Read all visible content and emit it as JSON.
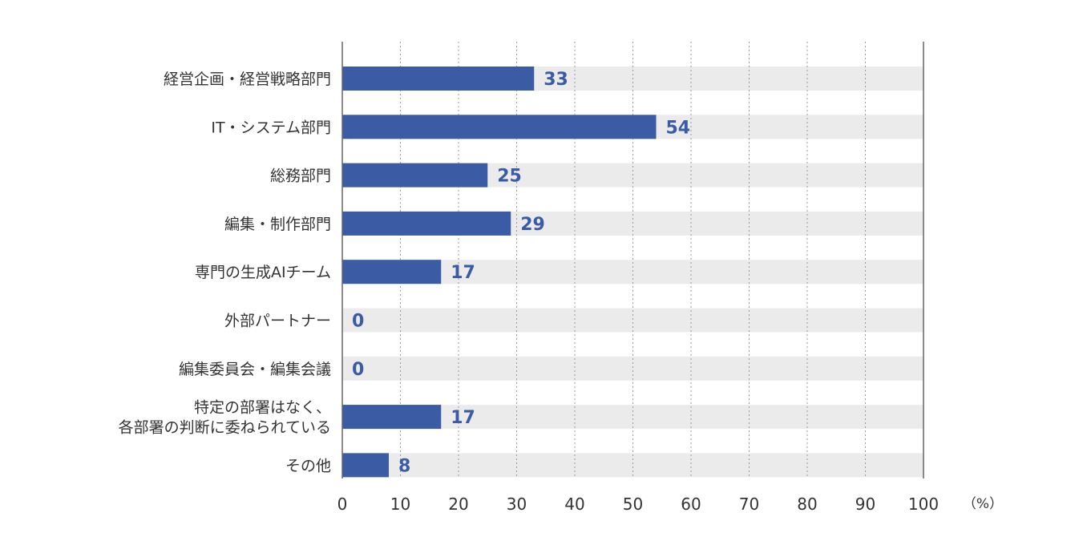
{
  "chart_data": {
    "type": "bar",
    "orientation": "horizontal",
    "categories": [
      [
        "経営企画・経営戦略部門"
      ],
      [
        "IT・システム部門"
      ],
      [
        "総務部門"
      ],
      [
        "編集・制作部門"
      ],
      [
        "専門の生成AIチーム"
      ],
      [
        "外部パートナー"
      ],
      [
        "編集委員会・編集会議"
      ],
      [
        "特定の部署はなく、",
        "各部署の判断に委ねられている"
      ],
      [
        "その他"
      ]
    ],
    "values": [
      33,
      54,
      25,
      29,
      17,
      0,
      0,
      17,
      8
    ],
    "xlim": [
      0,
      100
    ],
    "xticks": [
      0,
      10,
      20,
      30,
      40,
      50,
      60,
      70,
      80,
      90,
      100
    ],
    "unit_label": "（%）",
    "grid": true,
    "colors": {
      "bar": "#3b5ba5",
      "track": "#ebebeb",
      "grid": "#999999",
      "axis": "#666666",
      "value_text": "#3b5ba5"
    }
  }
}
